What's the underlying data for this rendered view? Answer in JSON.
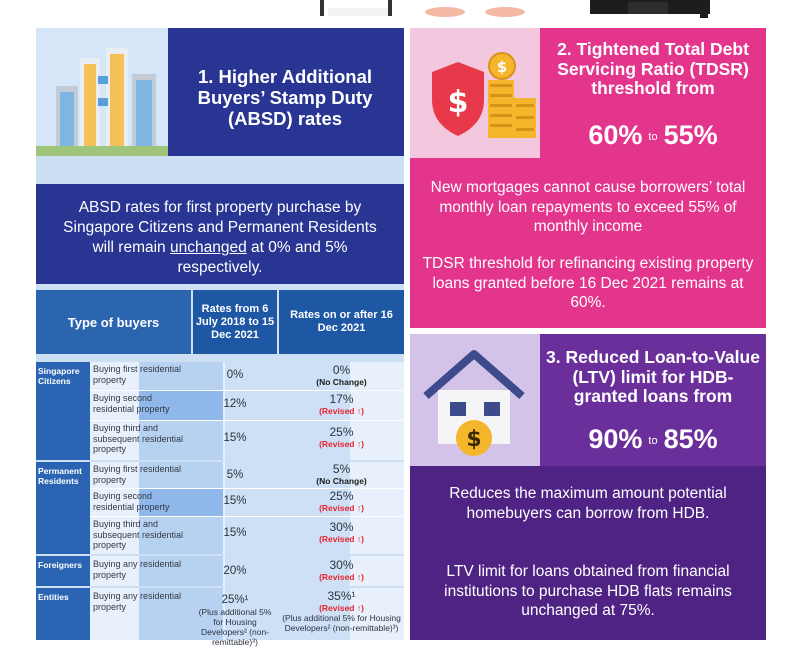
{
  "colors": {
    "navy": "#283592",
    "pink": "#e4358d",
    "purple": "#4f2384",
    "table_header": "#2b65b0",
    "revised_red": "#e8252b"
  },
  "section1": {
    "title": "1. Higher Additional Buyers’ Stamp Duty (ABSD) rates",
    "intro_before": "ABSD rates for first property purchase by Singapore Citizens and Permanent Residents will remain ",
    "intro_underlined": "unchanged",
    "intro_after": " at 0% and 5% respectively.",
    "table": {
      "headers": [
        "Type of buyers",
        "Rates from 6 July 2018 to 15 Dec 2021",
        "Rates on or after 16 Dec 2021"
      ],
      "groups": [
        {
          "label": "Singapore Citizens",
          "rows": [
            {
              "buyer": "Buying first residential property",
              "old": "0%",
              "new": "0%",
              "note": "(No Change)"
            },
            {
              "buyer": "Buying second residential property",
              "old": "12%",
              "new": "17%",
              "note": "(Revised ↑)"
            },
            {
              "buyer": "Buying third and subsequent residential property",
              "old": "15%",
              "new": "25%",
              "note": "(Revised ↑)"
            }
          ]
        },
        {
          "label": "Permanent Residents",
          "rows": [
            {
              "buyer": "Buying first residential property",
              "old": "5%",
              "new": "5%",
              "note": "(No Change)"
            },
            {
              "buyer": "Buying second residential property",
              "old": "15%",
              "new": "25%",
              "note": "(Revised ↑)"
            },
            {
              "buyer": "Buying third and subsequent residential property",
              "old": "15%",
              "new": "30%",
              "note": "(Revised ↑)"
            }
          ]
        },
        {
          "label": "Foreigners",
          "rows": [
            {
              "buyer": "Buying any residential property",
              "old": "20%",
              "new": "30%",
              "note": "(Revised ↑)"
            }
          ]
        },
        {
          "label": "Entities",
          "rows": [
            {
              "buyer": "Buying any residential property",
              "old": "25%¹",
              "old_extra": "(Plus additional 5% for Housing Developers² (non-remittable)³)",
              "new": "35%¹",
              "note": "(Revised ↑)",
              "new_extra": "(Plus additional 5% for Housing Developers² (non-remittable)³)"
            }
          ]
        }
      ]
    }
  },
  "section2": {
    "title": "2. Tightened Total Debt Servicing Ratio (TDSR) threshold from",
    "from": "60%",
    "to_word": "to",
    "to": "55%",
    "para1": "New mortgages cannot cause borrowers’ total monthly loan repayments to exceed 55% of monthly income",
    "para2": "TDSR threshold for refinancing existing property loans granted before 16 Dec 2021 remains at 60%."
  },
  "section3": {
    "title": "3. Reduced Loan-to-Value (LTV) limit for HDB-granted loans from",
    "from": "90%",
    "to_word": "to",
    "to": "85%",
    "para1": "Reduces the maximum amount potential homebuyers can borrow from HDB.",
    "para2": "LTV limit for loans obtained from financial institutions to purchase HDB flats remains unchanged at 75%."
  },
  "icons": {
    "section1": "buildings-illustration",
    "section2": "shield-dollar-coins-illustration",
    "section3": "house-dollar-illustration"
  }
}
